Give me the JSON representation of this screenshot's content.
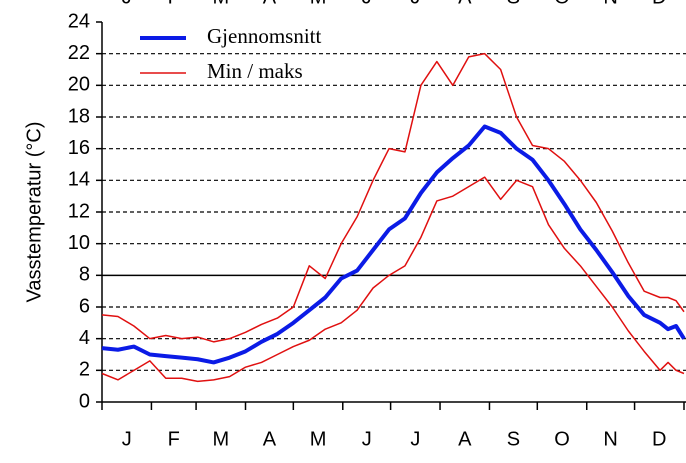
{
  "chart_data": {
    "type": "line",
    "ylabel": "Vasstemperatur (°C)",
    "x": [
      0,
      10,
      20,
      30,
      40,
      50,
      60,
      70,
      80,
      90,
      100,
      110,
      120,
      130,
      140,
      150,
      160,
      170,
      180,
      190,
      200,
      210,
      220,
      230,
      240,
      250,
      260,
      270,
      280,
      290,
      300,
      310,
      320,
      330,
      340,
      350,
      355,
      360,
      365
    ],
    "xlim": [
      0,
      365
    ],
    "xticks": [
      0,
      31,
      59,
      90,
      120,
      151,
      181,
      212,
      243,
      273,
      304,
      334,
      365
    ],
    "month_labels": [
      "J",
      "F",
      "M",
      "A",
      "M",
      "J",
      "J",
      "A",
      "S",
      "O",
      "N",
      "D"
    ],
    "series": [
      {
        "name": "Gjennomsnitt",
        "color": "#0b1be6",
        "values": [
          3.4,
          3.3,
          3.5,
          3.0,
          2.9,
          2.8,
          2.7,
          2.5,
          2.8,
          3.2,
          3.8,
          4.3,
          5.0,
          5.8,
          6.6,
          7.8,
          8.3,
          9.6,
          10.9,
          11.6,
          13.2,
          14.5,
          15.4,
          16.2,
          17.4,
          17.0,
          16.0,
          15.3,
          14.0,
          12.5,
          10.9,
          9.6,
          8.2,
          6.7,
          5.5,
          5.0,
          4.6,
          4.8,
          4.0
        ]
      },
      {
        "name": "Min / maks",
        "color": "#e01010",
        "values": [
          5.5,
          5.4,
          4.8,
          4.0,
          4.2,
          4.0,
          4.1,
          3.8,
          4.0,
          4.4,
          4.9,
          5.3,
          6.0,
          8.6,
          7.8,
          10.0,
          11.7,
          14.0,
          16.0,
          15.8,
          20.0,
          21.5,
          20.0,
          21.8,
          22.0,
          21.0,
          18.0,
          16.2,
          16.0,
          15.2,
          14.0,
          12.6,
          10.8,
          8.8,
          7.0,
          6.6,
          6.6,
          6.4,
          5.7
        ],
        "lower": [
          1.8,
          1.4,
          2.0,
          2.6,
          1.5,
          1.5,
          1.3,
          1.4,
          1.6,
          2.2,
          2.5,
          3.0,
          3.5,
          3.9,
          4.6,
          5.0,
          5.8,
          7.2,
          8.0,
          8.6,
          10.4,
          12.7,
          13.0,
          13.6,
          14.2,
          12.8,
          14.0,
          13.6,
          11.2,
          9.7,
          8.6,
          7.3,
          6.0,
          4.5,
          3.2,
          2.0,
          2.5,
          2.0,
          1.8
        ]
      }
    ],
    "ylim": [
      0,
      24
    ],
    "yticks": [
      0,
      2,
      4,
      6,
      8,
      10,
      12,
      14,
      16,
      18,
      20,
      22,
      24
    ],
    "grid": true,
    "reference_line": 8,
    "legend": "upper-left"
  }
}
